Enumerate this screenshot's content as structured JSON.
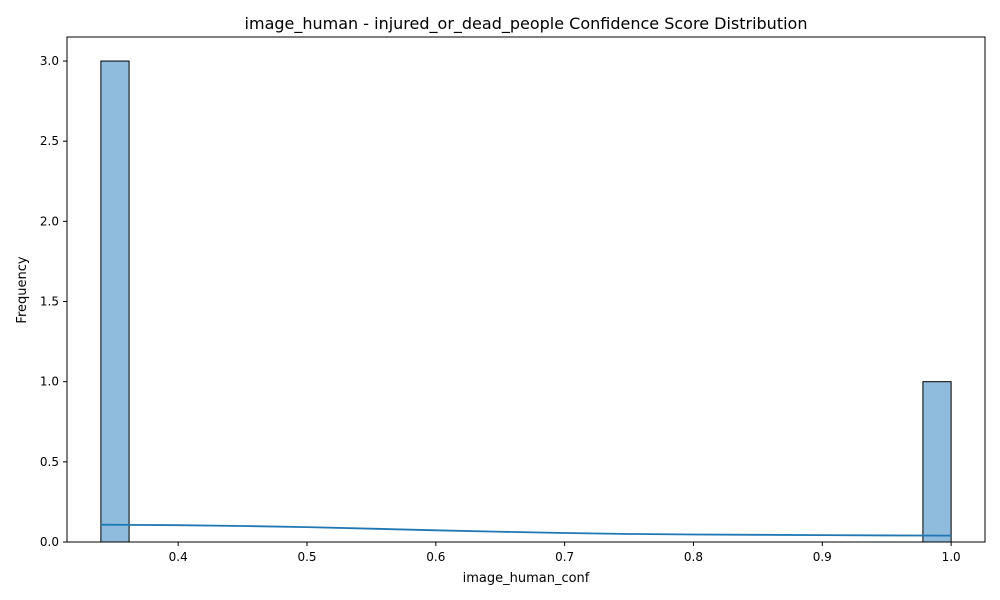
{
  "chart_data": {
    "type": "bar",
    "title": "image_human - injured_or_dead_people Confidence Score Distribution",
    "xlabel": "image_human_conf",
    "ylabel": "Frequency",
    "xlim": [
      0.3137,
      1.0263
    ],
    "ylim": [
      0,
      3.15
    ],
    "xticks": [
      "0.4",
      "0.5",
      "0.6",
      "0.7",
      "0.8",
      "0.9",
      "1.0"
    ],
    "yticks": [
      "0.0",
      "0.5",
      "1.0",
      "1.5",
      "2.0",
      "2.5",
      "3.0"
    ],
    "grid": false,
    "bins": [
      {
        "start": 0.34,
        "end": 0.3619,
        "count": 3
      },
      {
        "start": 0.9781,
        "end": 1.0,
        "count": 1
      }
    ],
    "series": [
      {
        "kind": "histogram",
        "color": "#8fbbdc",
        "edge_color": "#000000"
      },
      {
        "kind": "kde",
        "color": "#1f77b4",
        "x": [
          0.34,
          0.4,
          0.45,
          0.5,
          0.55,
          0.6,
          0.65,
          0.7,
          0.75,
          0.8,
          0.85,
          0.9,
          0.95,
          1.0
        ],
        "y": [
          0.108,
          0.105,
          0.1,
          0.093,
          0.083,
          0.073,
          0.064,
          0.056,
          0.05,
          0.047,
          0.045,
          0.043,
          0.041,
          0.04
        ]
      }
    ]
  }
}
